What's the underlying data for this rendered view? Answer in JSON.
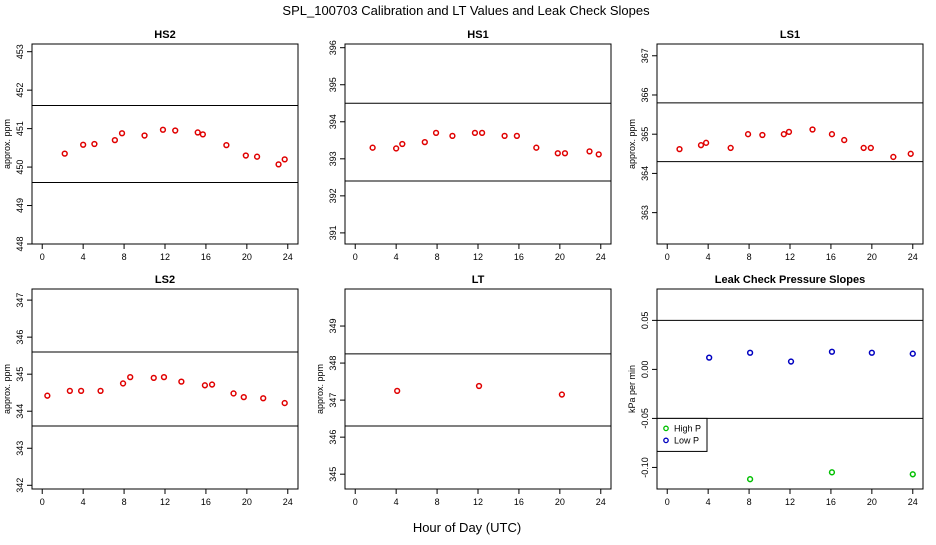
{
  "title": "SPL_100703  Calibration and LT Values and Leak Check Slopes",
  "xlabel_common": "Hour of Day (UTC)",
  "colors": {
    "ppm_points": "#e00000",
    "high_p": "#00c000",
    "low_p": "#0000c0",
    "axis": "#000000"
  },
  "chart_data": [
    {
      "type": "scatter",
      "title": "HS2",
      "ylabel": "approx. ppm",
      "xlim": [
        -1,
        25
      ],
      "ylim": [
        448,
        453.2
      ],
      "xticks": [
        0,
        4,
        8,
        12,
        16,
        20,
        24
      ],
      "yticks": [
        448,
        449,
        450,
        451,
        452,
        453
      ],
      "hlines": [
        449.6,
        451.6
      ],
      "series": [
        {
          "x": [
            2.2,
            4,
            5.1,
            7.1,
            7.8,
            10,
            11.8,
            13,
            15.2,
            15.7,
            18,
            19.9,
            21,
            23.1,
            23.7
          ],
          "y": [
            450.35,
            450.58,
            450.6,
            450.7,
            450.88,
            450.82,
            450.97,
            450.95,
            450.9,
            450.85,
            450.57,
            450.3,
            450.27,
            450.07,
            450.2
          ]
        }
      ]
    },
    {
      "type": "scatter",
      "title": "HS1",
      "ylabel": "",
      "xlim": [
        -1,
        25
      ],
      "ylim": [
        390.7,
        396.1
      ],
      "xticks": [
        0,
        4,
        8,
        12,
        16,
        20,
        24
      ],
      "yticks": [
        391,
        392,
        393,
        394,
        395,
        396
      ],
      "hlines": [
        392.4,
        394.5
      ],
      "series": [
        {
          "x": [
            1.7,
            4,
            4.6,
            6.8,
            7.9,
            9.5,
            11.7,
            12.4,
            14.6,
            15.8,
            17.7,
            19.8,
            20.5,
            22.9,
            23.8
          ],
          "y": [
            393.3,
            393.28,
            393.4,
            393.45,
            393.7,
            393.62,
            393.7,
            393.7,
            393.62,
            393.62,
            393.3,
            393.15,
            393.15,
            393.2,
            393.12
          ]
        }
      ]
    },
    {
      "type": "scatter",
      "title": "LS1",
      "ylabel": "approx. ppm",
      "xlim": [
        -1,
        25
      ],
      "ylim": [
        362.2,
        367.3
      ],
      "xticks": [
        0,
        4,
        8,
        12,
        16,
        20,
        24
      ],
      "yticks": [
        363,
        364,
        365,
        366,
        367
      ],
      "hlines": [
        364.3,
        365.8
      ],
      "series": [
        {
          "x": [
            1.2,
            3.3,
            3.8,
            6.2,
            7.9,
            9.3,
            11.4,
            11.9,
            14.2,
            16.1,
            17.3,
            19.2,
            19.9,
            22.1,
            23.8
          ],
          "y": [
            364.62,
            364.72,
            364.78,
            364.65,
            365.0,
            364.98,
            365.0,
            365.06,
            365.12,
            365.0,
            364.85,
            364.65,
            364.65,
            364.42,
            364.5
          ]
        }
      ]
    },
    {
      "type": "scatter",
      "title": "LS2",
      "ylabel": "approx. ppm",
      "xlim": [
        -1,
        25
      ],
      "ylim": [
        341.9,
        347.3
      ],
      "xticks": [
        0,
        4,
        8,
        12,
        16,
        20,
        24
      ],
      "yticks": [
        342,
        343,
        344,
        345,
        346,
        347
      ],
      "hlines": [
        343.6,
        345.6
      ],
      "series": [
        {
          "x": [
            0.5,
            2.7,
            3.8,
            5.7,
            7.9,
            8.6,
            10.9,
            11.9,
            13.6,
            15.9,
            16.6,
            18.7,
            19.7,
            21.6,
            23.7
          ],
          "y": [
            344.42,
            344.55,
            344.55,
            344.55,
            344.75,
            344.92,
            344.9,
            344.92,
            344.8,
            344.7,
            344.72,
            344.48,
            344.38,
            344.35,
            344.22
          ]
        }
      ]
    },
    {
      "type": "scatter",
      "title": "LT",
      "ylabel": "approx. ppm",
      "xlim": [
        -1,
        25
      ],
      "ylim": [
        344.6,
        350
      ],
      "xticks": [
        0,
        4,
        8,
        12,
        16,
        20,
        24
      ],
      "yticks": [
        345,
        346,
        347,
        348,
        349
      ],
      "hlines": [
        346.3,
        348.25
      ],
      "series": [
        {
          "x": [
            4.1,
            12.1,
            20.2
          ],
          "y": [
            347.25,
            347.38,
            347.15
          ]
        }
      ]
    },
    {
      "type": "scatter",
      "title": "Leak Check Pressure Slopes",
      "ylabel": "kPa per min",
      "xlim": [
        -1,
        25
      ],
      "ylim": [
        -0.122,
        0.082
      ],
      "xticks": [
        0,
        4,
        8,
        12,
        16,
        20,
        24
      ],
      "yticks": [
        -0.1,
        -0.05,
        0.0,
        0.05
      ],
      "ytick_labels": [
        "-0.10",
        "-0.05",
        "0.00",
        "0.05"
      ],
      "hlines": [
        -0.05,
        0.05
      ],
      "legend": "left",
      "series": [
        {
          "name": "High P",
          "x": [
            8.1,
            16.1,
            24
          ],
          "y": [
            -0.112,
            -0.105,
            -0.107
          ]
        },
        {
          "name": "Low P",
          "x": [
            4.1,
            8.1,
            12.1,
            16.1,
            20,
            24
          ],
          "y": [
            0.012,
            0.017,
            0.008,
            0.018,
            0.017,
            0.016
          ]
        }
      ]
    }
  ]
}
